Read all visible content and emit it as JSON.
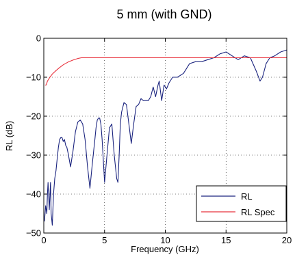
{
  "chart_data": {
    "type": "line",
    "title": "5 mm (with GND)",
    "xlabel": "Frequency (GHz)",
    "ylabel": "RL (dB)",
    "xlim": [
      0,
      20
    ],
    "ylim": [
      -50,
      0
    ],
    "xticks": [
      0,
      5,
      10,
      15,
      20
    ],
    "yticks": [
      0,
      -10,
      -20,
      -30,
      -40,
      -50
    ],
    "xtick_labels": [
      "0",
      "5",
      "10",
      "15",
      "20"
    ],
    "ytick_labels": [
      "0",
      "−10",
      "−20",
      "−30",
      "−40",
      "−50"
    ],
    "grid": true,
    "grid_style": "dotted",
    "legend_position": "bottom-right",
    "series": [
      {
        "name": "RL",
        "color": "#1a237e",
        "x": [
          0.05,
          0.15,
          0.25,
          0.3,
          0.35,
          0.45,
          0.55,
          0.6,
          0.7,
          0.8,
          0.9,
          1.0,
          1.1,
          1.2,
          1.3,
          1.4,
          1.5,
          1.6,
          1.7,
          1.8,
          1.9,
          2.0,
          2.2,
          2.4,
          2.6,
          2.8,
          3.0,
          3.2,
          3.4,
          3.6,
          3.8,
          4.0,
          4.2,
          4.3,
          4.4,
          4.5,
          4.6,
          4.7,
          4.8,
          5.0,
          5.2,
          5.4,
          5.6,
          5.8,
          6.0,
          6.1,
          6.2,
          6.3,
          6.4,
          6.6,
          6.8,
          7.0,
          7.2,
          7.4,
          7.6,
          7.8,
          8.0,
          8.2,
          8.4,
          8.6,
          8.8,
          9.0,
          9.2,
          9.4,
          9.5,
          9.7,
          9.9,
          10.1,
          10.3,
          10.6,
          11.0,
          11.5,
          12.0,
          12.5,
          13.0,
          13.5,
          14.0,
          14.5,
          15.0,
          15.5,
          16.0,
          16.5,
          17.0,
          17.5,
          17.8,
          18.0,
          18.3,
          18.6,
          19.0,
          19.5,
          20.0
        ],
        "y": [
          -47,
          -43,
          -45,
          -40,
          -37,
          -44,
          -37,
          -45,
          -48,
          -40,
          -36,
          -34,
          -31,
          -28,
          -26,
          -25.5,
          -25.5,
          -26.5,
          -26,
          -27.5,
          -28,
          -29.5,
          -33,
          -29,
          -24,
          -21.5,
          -21,
          -22,
          -26,
          -33,
          -38.5,
          -32,
          -26,
          -23,
          -21,
          -20.5,
          -20.5,
          -22,
          -26,
          -37,
          -30,
          -23,
          -22,
          -30,
          -36,
          -37,
          -30,
          -22,
          -19,
          -16.5,
          -17,
          -22,
          -27,
          -22,
          -17.5,
          -17,
          -15.5,
          -16,
          -16,
          -16,
          -15,
          -12.5,
          -15,
          -12,
          -11,
          -16,
          -12,
          -13,
          -11.5,
          -10,
          -10,
          -9,
          -6.5,
          -6,
          -6,
          -5.5,
          -5,
          -4,
          -3.5,
          -4.5,
          -5.5,
          -4.5,
          -5,
          -8.5,
          -11,
          -10,
          -6.5,
          -5,
          -4.5,
          -3.5,
          -3
        ]
      },
      {
        "name": "RL Spec",
        "color": "#e8313c",
        "x": [
          0.1,
          0.2,
          0.3,
          0.5,
          0.7,
          1.0,
          1.3,
          1.6,
          2.0,
          2.4,
          2.8,
          3.1,
          3.5,
          5,
          10,
          15,
          20
        ],
        "y": [
          -12,
          -12,
          -11,
          -10,
          -9.2,
          -8.3,
          -7.5,
          -6.8,
          -6.1,
          -5.6,
          -5.2,
          -5,
          -5,
          -5,
          -5,
          -5,
          -5
        ]
      }
    ]
  }
}
